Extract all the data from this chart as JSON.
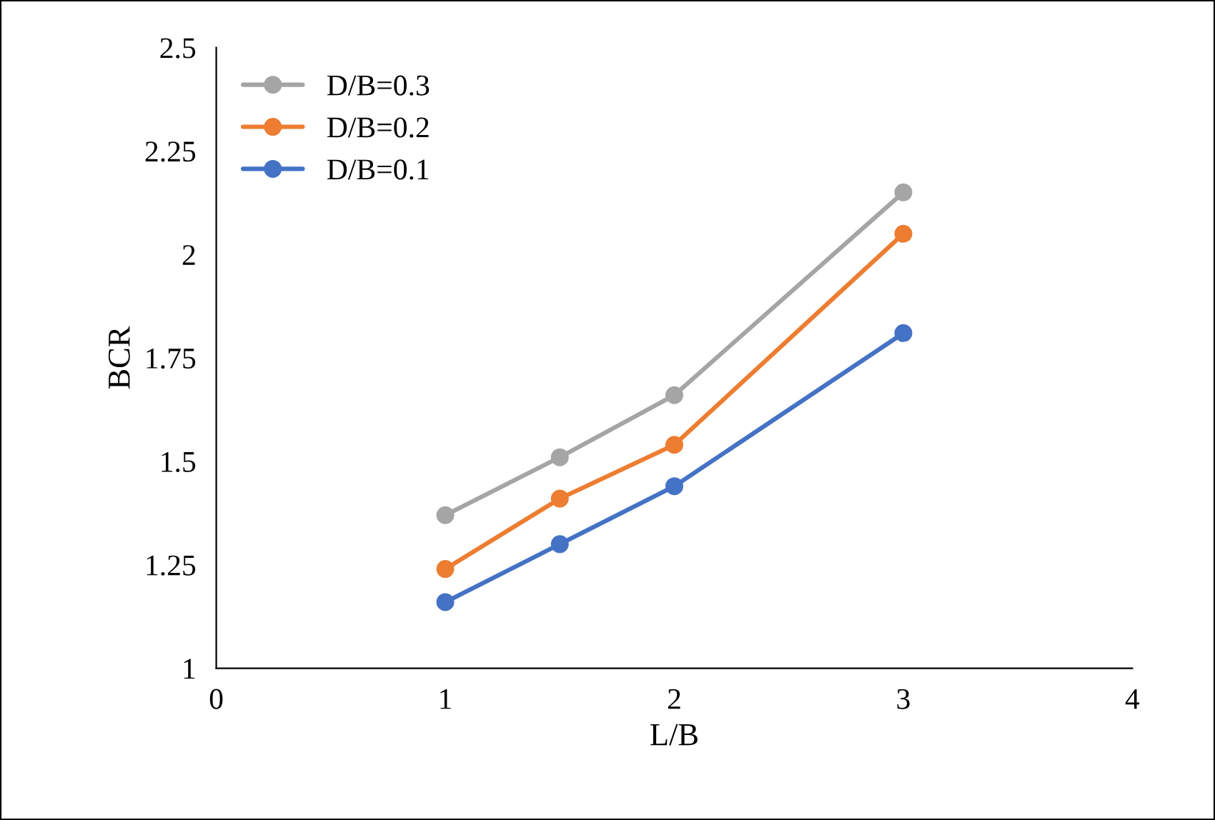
{
  "chart_data": {
    "type": "line",
    "xlabel": "L/B",
    "ylabel": "BCR",
    "x": [
      1,
      1.5,
      2,
      3
    ],
    "series": [
      {
        "name": "D/B=0.3",
        "color": "#a5a5a5",
        "values": [
          1.37,
          1.51,
          1.66,
          2.15
        ]
      },
      {
        "name": "D/B=0.2",
        "color": "#ed7d31",
        "values": [
          1.24,
          1.41,
          1.54,
          2.05
        ]
      },
      {
        "name": "D/B=0.1",
        "color": "#4472c4",
        "values": [
          1.16,
          1.3,
          1.44,
          1.81
        ]
      }
    ],
    "xlim": [
      0,
      4
    ],
    "xticks": [
      0,
      1,
      2,
      3,
      4
    ],
    "ylim": [
      1,
      2.5
    ],
    "yticks": [
      1,
      1.25,
      1.5,
      1.75,
      2,
      2.25,
      2.5
    ],
    "grid": false,
    "legend": "top left",
    "marker": "circle",
    "line_style": "solid"
  }
}
